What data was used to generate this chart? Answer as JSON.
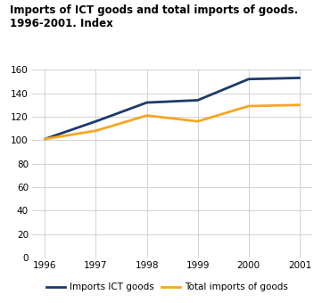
{
  "title_line1": "Imports of ICT goods and total imports of goods.",
  "title_line2": "1996-2001. Index",
  "years": [
    1996,
    1997,
    1998,
    1999,
    2000,
    2001
  ],
  "ict_imports": [
    101,
    116,
    132,
    134,
    152,
    153
  ],
  "total_imports": [
    101,
    108,
    121,
    116,
    129,
    130
  ],
  "ict_color": "#1b3a6b",
  "total_color": "#f5a623",
  "ict_label": "Imports ICT goods",
  "total_label": "Total imports of goods",
  "ylim": [
    0,
    160
  ],
  "yticks": [
    0,
    20,
    40,
    60,
    80,
    100,
    120,
    140,
    160
  ],
  "title_fontsize": 8.5,
  "tick_fontsize": 7.5,
  "legend_fontsize": 7.5,
  "line_width": 2.0,
  "grid_color": "#cccccc",
  "teal_bar_color": "#4db8b8",
  "background_color": "#ffffff"
}
